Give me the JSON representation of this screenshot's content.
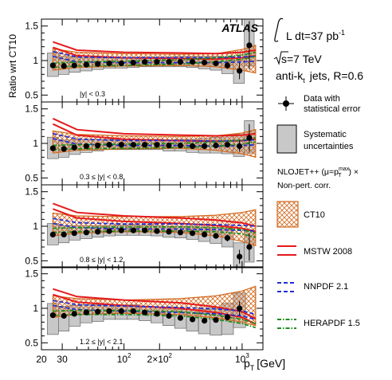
{
  "chart_data": {
    "type": "line",
    "experiment": "ATLAS",
    "ylabel": "Ratio wrt CT10",
    "xlabel_main": "p",
    "xlabel_sub": "T",
    "xlabel_unit": "[GeV]",
    "x_scale": "log",
    "x_range": [
      20,
      1500
    ],
    "y_range": [
      0.4,
      1.6
    ],
    "x_ticks": [
      {
        "value": 20,
        "label": "20"
      },
      {
        "value": 30,
        "label": "30"
      },
      {
        "value": 100,
        "label": "10",
        "sup": "2"
      },
      {
        "value": 200,
        "label": "2×10",
        "sup": "2"
      },
      {
        "value": 1000,
        "label": "10",
        "sup": "3"
      }
    ],
    "y_ticks": [
      {
        "value": 0.5,
        "label": "0.5"
      },
      {
        "value": 1.0,
        "label": "1"
      },
      {
        "value": 1.5,
        "label": "1.5"
      }
    ],
    "legend_info": {
      "lumi_prefix": "L dt=37 pb",
      "lumi_exp": "-1",
      "energy": "s=7 TeV",
      "algo_prefix": "anti-k",
      "algo_sub": "t",
      "algo_suffix": "jets, R=0.6",
      "theory_line1": "NLOJET++ (μ=p",
      "theory_sup": "max",
      "theory_sub": "T",
      "theory_line1_end": ") ×",
      "theory_line2": "Non-pert. corr."
    },
    "legend": [
      {
        "key": "data",
        "line1": "Data with",
        "line2": "statistical error"
      },
      {
        "key": "syst",
        "line1": "Systematic",
        "line2": "uncertainties"
      },
      {
        "key": "ct10",
        "line1": "CT10",
        "line2": ""
      },
      {
        "key": "mstw",
        "line1": "MSTW 2008",
        "line2": ""
      },
      {
        "key": "nnpdf",
        "line1": "NNPDF 2.1",
        "line2": ""
      },
      {
        "key": "hera",
        "line1": "HERAPDF 1.5",
        "line2": ""
      }
    ],
    "colors": {
      "ct10": "#d2691e",
      "mstw": "#e41a1c",
      "nnpdf": "#1f2fd6",
      "hera": "#1e8c1e",
      "syst": "#c8c8c8",
      "data": "#000000"
    },
    "panels": [
      {
        "rapidity_label": "|y| < 0.3",
        "x": [
          25,
          31,
          38,
          48,
          60,
          75,
          95,
          120,
          150,
          190,
          240,
          300,
          380,
          480,
          600,
          750,
          950,
          1150
        ],
        "data": [
          0.93,
          0.92,
          0.93,
          0.94,
          0.95,
          0.96,
          0.96,
          0.97,
          0.98,
          0.98,
          0.98,
          0.98,
          0.98,
          0.97,
          0.96,
          0.93,
          0.85,
          1.22
        ],
        "stat_err": [
          0.02,
          0.01,
          0.01,
          0.01,
          0.01,
          0.01,
          0.01,
          0.01,
          0.01,
          0.01,
          0.01,
          0.01,
          0.01,
          0.02,
          0.03,
          0.05,
          0.12,
          0.35
        ],
        "syst_up": [
          0.18,
          0.14,
          0.12,
          0.1,
          0.09,
          0.08,
          0.08,
          0.07,
          0.07,
          0.07,
          0.07,
          0.08,
          0.08,
          0.09,
          0.1,
          0.12,
          0.15,
          0.4
        ],
        "syst_down": [
          0.16,
          0.12,
          0.1,
          0.09,
          0.08,
          0.07,
          0.07,
          0.07,
          0.07,
          0.07,
          0.07,
          0.07,
          0.08,
          0.09,
          0.1,
          0.12,
          0.18,
          0.3
        ],
        "ct10_x": [
          25,
          40,
          100,
          300,
          600,
          1000,
          1300
        ],
        "ct10_up": [
          1.17,
          1.12,
          1.1,
          1.09,
          1.1,
          1.16,
          1.22
        ],
        "ct10_down": [
          0.86,
          0.9,
          0.92,
          0.93,
          0.91,
          0.86,
          0.82
        ],
        "mstw": [
          1.27,
          1.15,
          1.12,
          1.11,
          1.1,
          1.12,
          1.15
        ],
        "nnpdf": [
          1.12,
          1.04,
          1.03,
          1.03,
          1.03,
          1.04,
          1.05
        ],
        "hera": [
          0.96,
          0.98,
          0.99,
          1.01,
          1.04,
          1.08,
          1.12
        ]
      },
      {
        "rapidity_label": "0.3 ≤ |y| < 0.8",
        "x": [
          25,
          31,
          38,
          48,
          60,
          75,
          95,
          120,
          150,
          190,
          240,
          300,
          380,
          480,
          600,
          750,
          950,
          1150
        ],
        "data": [
          0.93,
          0.92,
          0.94,
          0.96,
          0.97,
          0.98,
          0.98,
          0.98,
          0.98,
          0.98,
          0.97,
          0.97,
          0.96,
          0.96,
          0.97,
          0.98,
          0.96,
          1.08
        ],
        "stat_err": [
          0.02,
          0.01,
          0.01,
          0.01,
          0.01,
          0.01,
          0.01,
          0.01,
          0.01,
          0.01,
          0.01,
          0.01,
          0.01,
          0.02,
          0.03,
          0.04,
          0.08,
          0.2
        ],
        "syst_up": [
          0.16,
          0.13,
          0.11,
          0.1,
          0.09,
          0.08,
          0.08,
          0.08,
          0.08,
          0.08,
          0.08,
          0.09,
          0.1,
          0.11,
          0.12,
          0.14,
          0.17,
          0.25
        ],
        "syst_down": [
          0.15,
          0.12,
          0.1,
          0.09,
          0.08,
          0.07,
          0.07,
          0.07,
          0.07,
          0.07,
          0.08,
          0.08,
          0.09,
          0.1,
          0.11,
          0.13,
          0.15,
          0.22
        ],
        "ct10_x": [
          25,
          40,
          100,
          300,
          600,
          1000,
          1300
        ],
        "ct10_up": [
          1.18,
          1.13,
          1.11,
          1.1,
          1.11,
          1.15,
          1.2
        ],
        "ct10_down": [
          0.86,
          0.9,
          0.92,
          0.93,
          0.9,
          0.85,
          0.8
        ],
        "mstw": [
          1.36,
          1.2,
          1.14,
          1.12,
          1.11,
          1.12,
          1.14
        ],
        "nnpdf": [
          1.13,
          1.05,
          1.03,
          1.03,
          1.02,
          1.03,
          1.04
        ],
        "hera": [
          0.97,
          0.98,
          0.99,
          1.0,
          1.02,
          1.05,
          1.08
        ]
      },
      {
        "rapidity_label": "0.8 ≤ |y| < 1.2",
        "x": [
          25,
          31,
          38,
          48,
          60,
          75,
          95,
          120,
          150,
          190,
          240,
          300,
          380,
          480,
          600,
          750,
          950,
          1150
        ],
        "data": [
          0.88,
          0.88,
          0.9,
          0.91,
          0.92,
          0.93,
          0.94,
          0.94,
          0.94,
          0.93,
          0.92,
          0.91,
          0.9,
          0.88,
          0.86,
          0.83,
          0.56,
          0.7
        ],
        "stat_err": [
          0.02,
          0.01,
          0.01,
          0.01,
          0.01,
          0.01,
          0.01,
          0.01,
          0.01,
          0.01,
          0.01,
          0.01,
          0.01,
          0.02,
          0.03,
          0.05,
          0.1,
          0.2
        ],
        "syst_up": [
          0.16,
          0.13,
          0.11,
          0.1,
          0.09,
          0.08,
          0.08,
          0.08,
          0.08,
          0.08,
          0.08,
          0.09,
          0.1,
          0.11,
          0.12,
          0.14,
          0.2,
          0.25
        ],
        "syst_down": [
          0.15,
          0.12,
          0.1,
          0.09,
          0.08,
          0.07,
          0.07,
          0.07,
          0.07,
          0.07,
          0.08,
          0.08,
          0.09,
          0.1,
          0.11,
          0.13,
          0.15,
          0.22
        ],
        "ct10_x": [
          25,
          40,
          100,
          300,
          600,
          1000,
          1300
        ],
        "ct10_up": [
          1.19,
          1.15,
          1.14,
          1.14,
          1.16,
          1.2,
          1.24
        ],
        "ct10_down": [
          0.86,
          0.9,
          0.92,
          0.91,
          0.86,
          0.78,
          0.72
        ],
        "mstw": [
          1.33,
          1.2,
          1.15,
          1.12,
          1.09,
          1.05,
          1.0
        ],
        "nnpdf": [
          1.1,
          1.04,
          1.02,
          1.02,
          1.01,
          1.0,
          0.99
        ],
        "hera": [
          0.97,
          0.98,
          0.99,
          0.99,
          0.98,
          0.95,
          0.9
        ]
      },
      {
        "rapidity_label": "1.2 ≤ |y| < 2.1",
        "x": [
          25,
          31,
          38,
          48,
          60,
          75,
          95,
          120,
          150,
          190,
          240,
          300,
          380,
          480,
          600,
          750,
          950
        ],
        "data": [
          0.9,
          0.89,
          0.92,
          0.94,
          0.95,
          0.96,
          0.96,
          0.96,
          0.94,
          0.92,
          0.89,
          0.86,
          0.84,
          0.82,
          0.83,
          0.87,
          1.0
        ],
        "stat_err": [
          0.02,
          0.01,
          0.01,
          0.01,
          0.01,
          0.01,
          0.01,
          0.01,
          0.01,
          0.01,
          0.01,
          0.01,
          0.01,
          0.02,
          0.03,
          0.05,
          0.1
        ],
        "syst_up": [
          0.17,
          0.14,
          0.12,
          0.11,
          0.1,
          0.09,
          0.09,
          0.09,
          0.09,
          0.1,
          0.11,
          0.12,
          0.14,
          0.16,
          0.18,
          0.2,
          0.22
        ],
        "syst_down": [
          0.28,
          0.22,
          0.18,
          0.15,
          0.14,
          0.12,
          0.12,
          0.12,
          0.12,
          0.13,
          0.14,
          0.15,
          0.17,
          0.19,
          0.22,
          0.25,
          0.28
        ],
        "ct10_x": [
          25,
          40,
          100,
          300,
          600,
          1000,
          1300
        ],
        "ct10_up": [
          1.18,
          1.14,
          1.12,
          1.14,
          1.18,
          1.25,
          1.32
        ],
        "ct10_down": [
          0.87,
          0.91,
          0.93,
          0.91,
          0.86,
          0.8,
          0.75
        ],
        "mstw": [
          1.28,
          1.17,
          1.12,
          1.08,
          1.02,
          0.95,
          0.85
        ],
        "nnpdf": [
          1.1,
          1.04,
          1.02,
          1.0,
          0.98,
          0.95,
          0.9
        ],
        "hera": [
          0.96,
          0.97,
          0.97,
          0.95,
          0.9,
          0.84,
          0.78
        ]
      }
    ]
  }
}
